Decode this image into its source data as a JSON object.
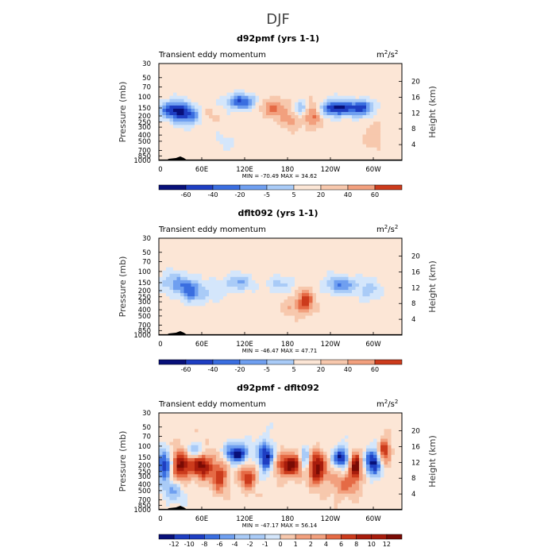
{
  "page_title": "DJF",
  "colors": {
    "neg": [
      "#08107a",
      "#1e3ec2",
      "#3a6ee0",
      "#6f9ff0",
      "#a9cbf7",
      "#d4e6fb"
    ],
    "zero": "#fce6d6",
    "pos": [
      "#f7c8ad",
      "#f2a07e",
      "#e56a45",
      "#cc3b1c",
      "#a81c0c",
      "#7a0b04"
    ]
  },
  "chart_data": [
    {
      "type": "heatmap",
      "title": "d92pmf (yrs 1-1)",
      "left_label": "Transient eddy momentum",
      "units_base": "m",
      "units_exp1": "2",
      "units_mid": "/s",
      "units_exp2": "2",
      "ylabel": "Pressure (mb)",
      "y2label": "Height (km)",
      "yticks": [
        "30",
        "50",
        "70",
        "100",
        "150",
        "200",
        "250",
        "300",
        "400",
        "500",
        "700",
        "850",
        "1000"
      ],
      "y2ticks": [
        "20",
        "16",
        "12",
        "8",
        "4"
      ],
      "xticks": [
        "0",
        "60E",
        "120E",
        "180",
        "120W",
        "60W"
      ],
      "stats": "MIN = -70.49   MAX =  34.62",
      "colorbar_labels": [
        "-60",
        "-40",
        "-20",
        "-5",
        "5",
        "20",
        "40",
        "60"
      ],
      "features": [
        {
          "lon": 20,
          "p": 160,
          "v": -60,
          "rl": 14,
          "rp": 0.22
        },
        {
          "lon": 40,
          "p": 200,
          "v": -45,
          "rl": 12,
          "rp": 0.25
        },
        {
          "lon": 115,
          "p": 120,
          "v": -55,
          "rl": 14,
          "rp": 0.2
        },
        {
          "lon": 160,
          "p": 150,
          "v": 30,
          "rl": 14,
          "rp": 0.25
        },
        {
          "lon": 185,
          "p": 230,
          "v": 20,
          "rl": 10,
          "rp": 0.25
        },
        {
          "lon": 200,
          "p": 150,
          "v": -40,
          "rl": 6,
          "rp": 0.2
        },
        {
          "lon": 215,
          "p": 180,
          "v": 34,
          "rl": 10,
          "rp": 0.35
        },
        {
          "lon": 250,
          "p": 150,
          "v": -70,
          "rl": 18,
          "rp": 0.2
        },
        {
          "lon": 285,
          "p": 150,
          "v": -50,
          "rl": 10,
          "rp": 0.2
        },
        {
          "lon": 300,
          "p": 400,
          "v": 15,
          "rl": 10,
          "rp": 0.3
        },
        {
          "lon": 70,
          "p": 200,
          "v": 8,
          "rl": 10,
          "rp": 0.25
        },
        {
          "lon": 95,
          "p": 500,
          "v": -8,
          "rl": 12,
          "rp": 0.3
        }
      ]
    },
    {
      "type": "heatmap",
      "title": "dflt092 (yrs 1-1)",
      "left_label": "Transient eddy momentum",
      "units_base": "m",
      "units_exp1": "2",
      "units_mid": "/s",
      "units_exp2": "2",
      "ylabel": "Pressure (mb)",
      "y2label": "Height (km)",
      "yticks": [
        "30",
        "50",
        "70",
        "100",
        "150",
        "200",
        "250",
        "300",
        "400",
        "500",
        "700",
        "850",
        "1000"
      ],
      "y2ticks": [
        "20",
        "16",
        "12",
        "8",
        "4"
      ],
      "xticks": [
        "0",
        "60E",
        "120E",
        "180",
        "120W",
        "60W"
      ],
      "stats": "MIN = -46.47   MAX =  47.71",
      "colorbar_labels": [
        "-60",
        "-40",
        "-20",
        "-5",
        "5",
        "20",
        "40",
        "60"
      ],
      "features": [
        {
          "lon": 20,
          "p": 150,
          "v": -30,
          "rl": 14,
          "rp": 0.25
        },
        {
          "lon": 45,
          "p": 200,
          "v": -46,
          "rl": 12,
          "rp": 0.28
        },
        {
          "lon": 110,
          "p": 150,
          "v": -30,
          "rl": 14,
          "rp": 0.22
        },
        {
          "lon": 170,
          "p": 160,
          "v": -20,
          "rl": 14,
          "rp": 0.22
        },
        {
          "lon": 205,
          "p": 300,
          "v": 47,
          "rl": 8,
          "rp": 0.3
        },
        {
          "lon": 185,
          "p": 350,
          "v": 15,
          "rl": 10,
          "rp": 0.25
        },
        {
          "lon": 255,
          "p": 160,
          "v": -40,
          "rl": 16,
          "rp": 0.22
        },
        {
          "lon": 295,
          "p": 200,
          "v": -25,
          "rl": 10,
          "rp": 0.25
        },
        {
          "lon": 75,
          "p": 220,
          "v": -15,
          "rl": 10,
          "rp": 0.25
        }
      ]
    },
    {
      "type": "heatmap",
      "title": "d92pmf - dflt092",
      "left_label": "Transient eddy momentum",
      "units_base": "m",
      "units_exp1": "2",
      "units_mid": "/s",
      "units_exp2": "2",
      "ylabel": "Pressure (mb)",
      "y2label": "Height (km)",
      "yticks": [
        "30",
        "50",
        "70",
        "100",
        "150",
        "200",
        "250",
        "300",
        "400",
        "500",
        "700",
        "850",
        "1000"
      ],
      "y2ticks": [
        "20",
        "16",
        "12",
        "8",
        "4"
      ],
      "xticks": [
        "0",
        "60E",
        "120E",
        "180",
        "120W",
        "60W"
      ],
      "stats": "MIN = -47.17   MAX =  56.14",
      "colorbar_labels": [
        "-12",
        "-10",
        "-8",
        "-6",
        "-4",
        "-2",
        "-1",
        "0",
        "1",
        "2",
        "4",
        "6",
        "8",
        "10",
        "12"
      ],
      "features": [
        {
          "lon": 8,
          "p": 200,
          "v": -14,
          "rl": 8,
          "rp": 0.35
        },
        {
          "lon": 30,
          "p": 200,
          "v": 14,
          "rl": 10,
          "rp": 0.4
        },
        {
          "lon": 60,
          "p": 200,
          "v": 14,
          "rl": 10,
          "rp": 0.35
        },
        {
          "lon": 50,
          "p": 120,
          "v": -8,
          "rl": 10,
          "rp": 0.2
        },
        {
          "lon": 85,
          "p": 300,
          "v": 10,
          "rl": 8,
          "rp": 0.4
        },
        {
          "lon": 110,
          "p": 130,
          "v": -14,
          "rl": 12,
          "rp": 0.25
        },
        {
          "lon": 125,
          "p": 300,
          "v": 10,
          "rl": 8,
          "rp": 0.35
        },
        {
          "lon": 150,
          "p": 150,
          "v": -14,
          "rl": 8,
          "rp": 0.4
        },
        {
          "lon": 185,
          "p": 200,
          "v": 14,
          "rl": 16,
          "rp": 0.3
        },
        {
          "lon": 205,
          "p": 180,
          "v": -14,
          "rl": 6,
          "rp": 0.35
        },
        {
          "lon": 220,
          "p": 220,
          "v": 14,
          "rl": 10,
          "rp": 0.4
        },
        {
          "lon": 255,
          "p": 150,
          "v": -14,
          "rl": 8,
          "rp": 0.25
        },
        {
          "lon": 275,
          "p": 200,
          "v": 14,
          "rl": 6,
          "rp": 0.35
        },
        {
          "lon": 300,
          "p": 180,
          "v": -14,
          "rl": 8,
          "rp": 0.35
        },
        {
          "lon": 315,
          "p": 120,
          "v": 12,
          "rl": 6,
          "rp": 0.3
        },
        {
          "lon": 260,
          "p": 400,
          "v": 6,
          "rl": 16,
          "rp": 0.35
        },
        {
          "lon": 20,
          "p": 500,
          "v": -6,
          "rl": 12,
          "rp": 0.3
        }
      ]
    }
  ]
}
